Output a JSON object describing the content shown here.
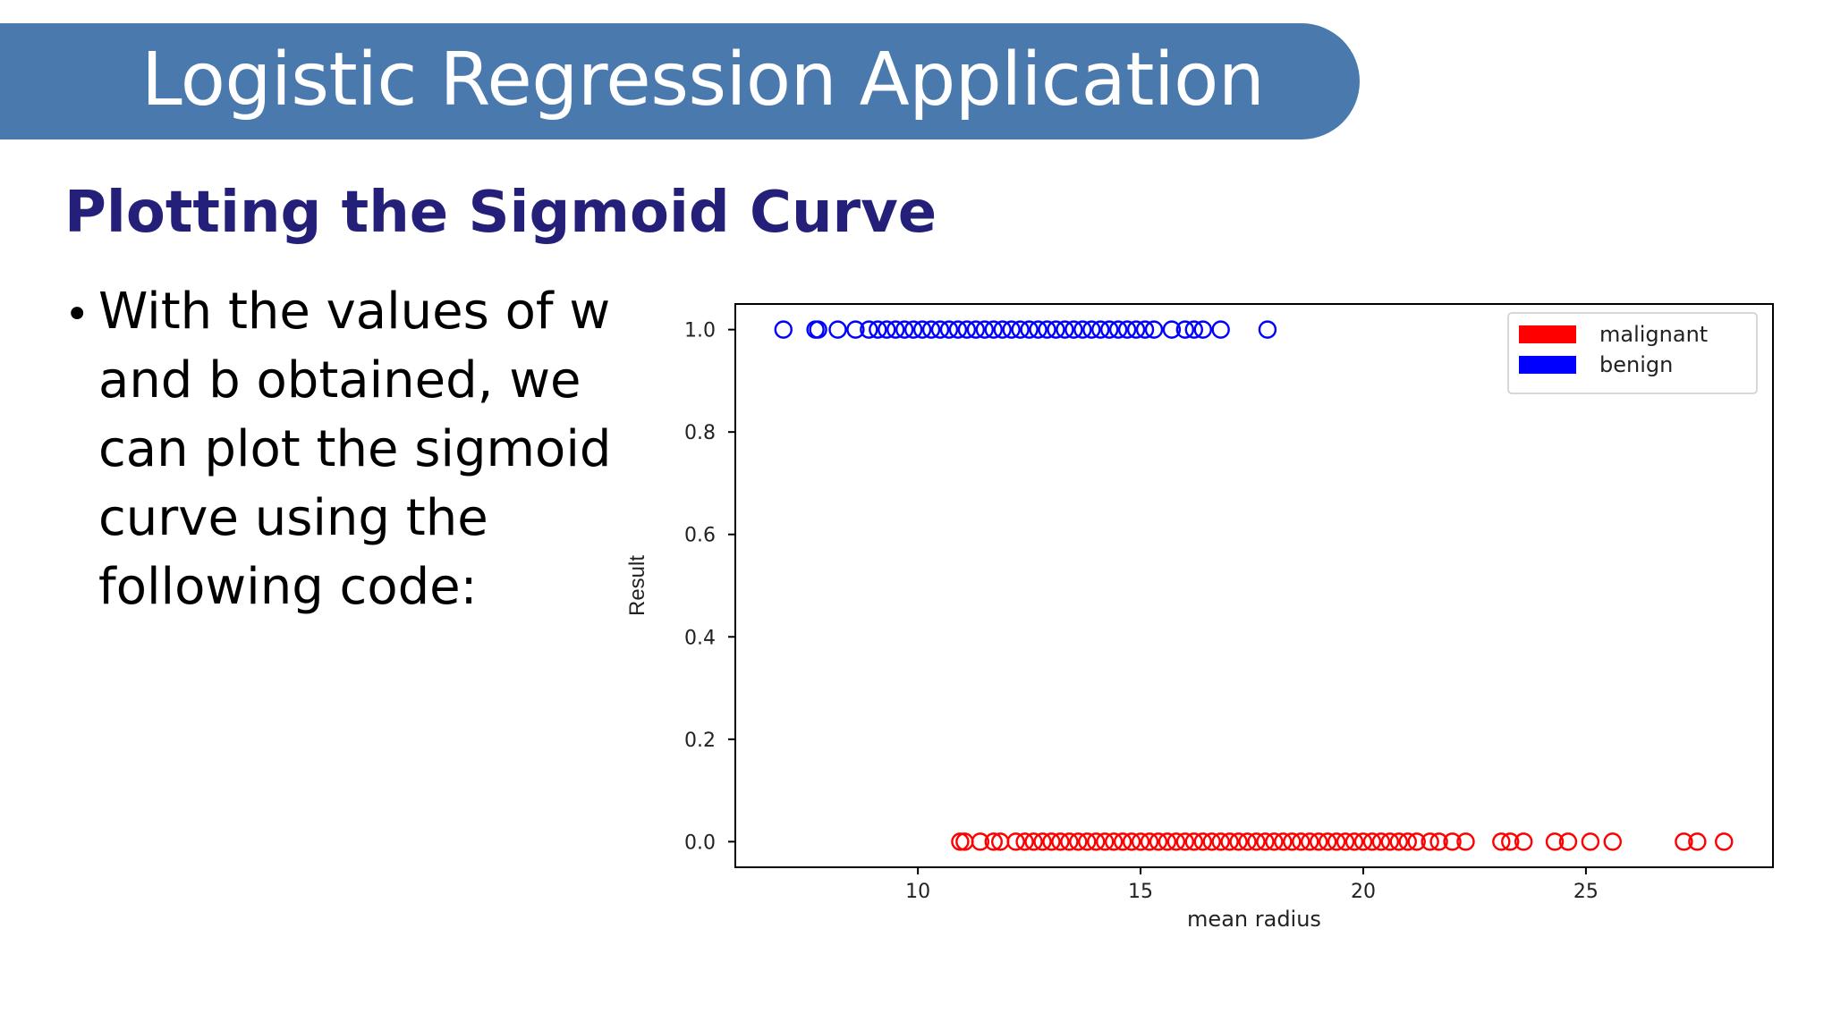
{
  "slide": {
    "title": "Logistic Regression Application",
    "subtitle": "Plotting the Sigmoid Curve",
    "bullet": "With the values of w and b obtained, we can plot the sigmoid curve using the following code:"
  },
  "colors": {
    "banner": "#4a7aad",
    "subtitle": "#24207a",
    "malignant": "#ff0000",
    "benign": "#0000ff"
  },
  "chart_data": {
    "type": "scatter",
    "xlabel": "mean radius",
    "ylabel": "Result",
    "xlim": [
      5.9,
      29.2
    ],
    "ylim": [
      -0.05,
      1.05
    ],
    "xticks": [
      10,
      15,
      20,
      25
    ],
    "xtick_labels": [
      "10",
      "15",
      "20",
      "25"
    ],
    "yticks": [
      0.0,
      0.2,
      0.4,
      0.6,
      0.8,
      1.0
    ],
    "ytick_labels": [
      "0.0",
      "0.2",
      "0.4",
      "0.6",
      "0.8",
      "1.0"
    ],
    "grid": false,
    "legend": {
      "position": "top-right",
      "entries": [
        "malignant",
        "benign"
      ]
    },
    "series": [
      {
        "name": "malignant",
        "color": "#ff0000",
        "marker": "open-circle",
        "y": 0,
        "x": [
          10.95,
          11.05,
          11.4,
          11.7,
          11.85,
          12.2,
          12.4,
          12.6,
          12.8,
          13.0,
          13.2,
          13.4,
          13.6,
          13.8,
          14.0,
          14.2,
          14.4,
          14.6,
          14.8,
          15.0,
          15.2,
          15.4,
          15.6,
          15.8,
          16.0,
          16.2,
          16.4,
          16.6,
          16.8,
          17.0,
          17.2,
          17.4,
          17.6,
          17.8,
          18.0,
          18.2,
          18.4,
          18.6,
          18.8,
          19.0,
          19.2,
          19.4,
          19.6,
          19.8,
          20.0,
          20.2,
          20.4,
          20.6,
          20.8,
          21.0,
          21.2,
          21.5,
          21.7,
          22.0,
          22.3,
          23.1,
          23.3,
          23.6,
          24.3,
          24.6,
          25.1,
          25.6,
          27.2,
          27.5,
          28.1
        ]
      },
      {
        "name": "benign",
        "color": "#0000ff",
        "marker": "open-circle",
        "y": 1,
        "x": [
          6.98,
          7.7,
          7.76,
          8.2,
          8.6,
          8.9,
          9.1,
          9.3,
          9.5,
          9.7,
          9.9,
          10.1,
          10.3,
          10.5,
          10.7,
          10.9,
          11.1,
          11.3,
          11.5,
          11.7,
          11.9,
          12.1,
          12.3,
          12.5,
          12.7,
          12.9,
          13.1,
          13.3,
          13.5,
          13.7,
          13.9,
          14.1,
          14.3,
          14.5,
          14.7,
          14.9,
          15.1,
          15.3,
          15.7,
          16.0,
          16.2,
          16.4,
          16.8,
          17.85
        ]
      }
    ]
  }
}
